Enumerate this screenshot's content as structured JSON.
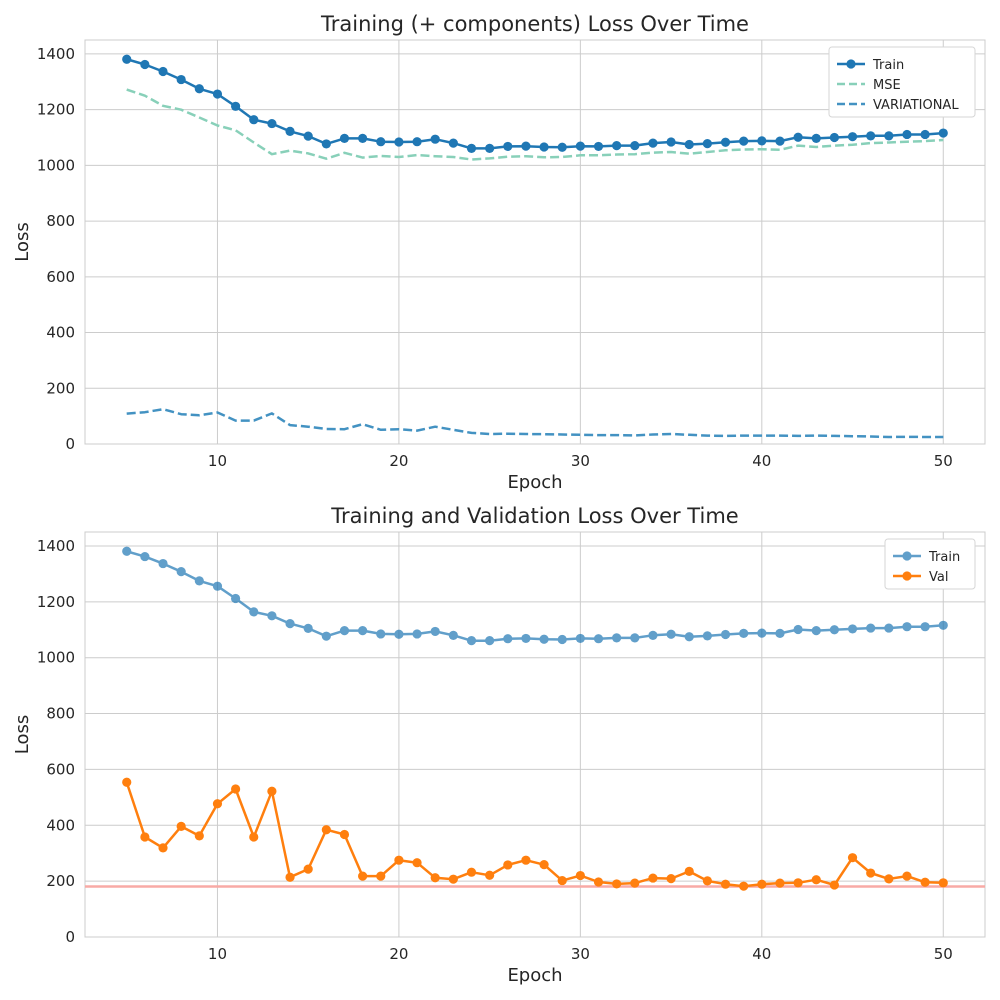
{
  "chart_data": [
    {
      "type": "line",
      "title": "Training (+ components) Loss Over Time",
      "xlabel": "Epoch",
      "ylabel": "Loss",
      "xlim": [
        2.7,
        52.3
      ],
      "ylim": [
        0,
        1450
      ],
      "xticks": [
        10,
        20,
        30,
        40,
        50
      ],
      "yticks": [
        0,
        200,
        400,
        600,
        800,
        1000,
        1200,
        1400
      ],
      "grid": true,
      "legend": "top-right",
      "x": [
        5,
        6,
        7,
        8,
        9,
        10,
        11,
        12,
        13,
        14,
        15,
        16,
        17,
        18,
        19,
        20,
        21,
        22,
        23,
        24,
        25,
        26,
        27,
        28,
        29,
        30,
        31,
        32,
        33,
        34,
        35,
        36,
        37,
        38,
        39,
        40,
        41,
        42,
        43,
        44,
        45,
        46,
        47,
        48,
        49,
        50
      ],
      "series": [
        {
          "name": "Train",
          "color": "#1f77b4",
          "style": "solid",
          "marker": "circle",
          "opacity": 1,
          "values": [
            1381,
            1362,
            1337,
            1308,
            1275,
            1256,
            1212,
            1164,
            1150,
            1122,
            1105,
            1077,
            1097,
            1097,
            1085,
            1084,
            1085,
            1094,
            1080,
            1061,
            1061,
            1068,
            1069,
            1066,
            1065,
            1069,
            1068,
            1071,
            1071,
            1080,
            1084,
            1075,
            1078,
            1083,
            1087,
            1088,
            1087,
            1101,
            1097,
            1100,
            1103,
            1106,
            1106,
            1111,
            1111,
            1116
          ]
        },
        {
          "name": "MSE",
          "color": "#88d0b9",
          "style": "dashed",
          "marker": "none",
          "opacity": 1,
          "values": [
            1272,
            1250,
            1214,
            1200,
            1172,
            1143,
            1126,
            1082,
            1040,
            1053,
            1043,
            1024,
            1045,
            1028,
            1034,
            1030,
            1037,
            1033,
            1030,
            1021,
            1025,
            1031,
            1033,
            1029,
            1030,
            1036,
            1036,
            1039,
            1040,
            1046,
            1048,
            1042,
            1048,
            1054,
            1057,
            1058,
            1056,
            1071,
            1066,
            1071,
            1074,
            1080,
            1082,
            1085,
            1087,
            1091
          ]
        },
        {
          "name": "VARIATIONAL",
          "color": "#4392c2",
          "style": "dashed",
          "marker": "none",
          "opacity": 1,
          "values": [
            109,
            114,
            125,
            107,
            103,
            113,
            84,
            84,
            110,
            68,
            62,
            54,
            53,
            71,
            51,
            53,
            48,
            62,
            51,
            40,
            36,
            37,
            36,
            35,
            34,
            33,
            32,
            32,
            31,
            34,
            36,
            33,
            30,
            29,
            30,
            30,
            30,
            29,
            30,
            29,
            28,
            27,
            25,
            26,
            25,
            25
          ]
        }
      ]
    },
    {
      "type": "line",
      "title": "Training and Validation Loss Over Time",
      "xlabel": "Epoch",
      "ylabel": "Loss",
      "xlim": [
        2.7,
        52.3
      ],
      "ylim": [
        0,
        1450
      ],
      "xticks": [
        10,
        20,
        30,
        40,
        50
      ],
      "yticks": [
        0,
        200,
        400,
        600,
        800,
        1000,
        1200,
        1400
      ],
      "grid": true,
      "legend": "top-right",
      "reference_line": {
        "y": 181,
        "color": "#f8aaa5"
      },
      "x": [
        5,
        6,
        7,
        8,
        9,
        10,
        11,
        12,
        13,
        14,
        15,
        16,
        17,
        18,
        19,
        20,
        21,
        22,
        23,
        24,
        25,
        26,
        27,
        28,
        29,
        30,
        31,
        32,
        33,
        34,
        35,
        36,
        37,
        38,
        39,
        40,
        41,
        42,
        43,
        44,
        45,
        46,
        47,
        48,
        49,
        50
      ],
      "series": [
        {
          "name": "Train",
          "color": "#1f77b4",
          "style": "solid",
          "marker": "circle",
          "opacity": 0.7,
          "values": [
            1381,
            1362,
            1337,
            1308,
            1275,
            1256,
            1212,
            1164,
            1150,
            1122,
            1105,
            1077,
            1097,
            1097,
            1085,
            1084,
            1085,
            1094,
            1080,
            1061,
            1061,
            1068,
            1069,
            1066,
            1065,
            1069,
            1068,
            1071,
            1071,
            1080,
            1084,
            1075,
            1078,
            1083,
            1087,
            1088,
            1087,
            1101,
            1097,
            1100,
            1103,
            1106,
            1106,
            1111,
            1111,
            1116
          ]
        },
        {
          "name": "Val",
          "color": "#ff7f0e",
          "style": "solid",
          "marker": "circle",
          "opacity": 1,
          "values": [
            554,
            358,
            319,
            396,
            362,
            477,
            530,
            358,
            522,
            214,
            243,
            384,
            367,
            218,
            218,
            275,
            266,
            212,
            207,
            232,
            221,
            258,
            275,
            259,
            202,
            220,
            197,
            190,
            193,
            211,
            209,
            235,
            201,
            189,
            182,
            189,
            193,
            194,
            205,
            186,
            284,
            229,
            208,
            218,
            196,
            194
          ]
        }
      ]
    }
  ]
}
